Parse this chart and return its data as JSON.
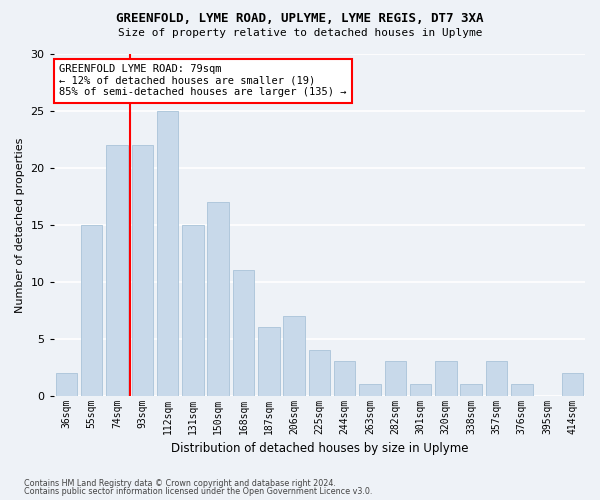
{
  "title1": "GREENFOLD, LYME ROAD, UPLYME, LYME REGIS, DT7 3XA",
  "title2": "Size of property relative to detached houses in Uplyme",
  "xlabel": "Distribution of detached houses by size in Uplyme",
  "ylabel": "Number of detached properties",
  "categories": [
    "36sqm",
    "55sqm",
    "74sqm",
    "93sqm",
    "112sqm",
    "131sqm",
    "150sqm",
    "168sqm",
    "187sqm",
    "206sqm",
    "225sqm",
    "244sqm",
    "263sqm",
    "282sqm",
    "301sqm",
    "320sqm",
    "338sqm",
    "357sqm",
    "376sqm",
    "395sqm",
    "414sqm"
  ],
  "values": [
    2,
    15,
    22,
    22,
    25,
    15,
    17,
    11,
    6,
    7,
    4,
    3,
    1,
    3,
    1,
    3,
    1,
    3,
    1,
    0,
    2
  ],
  "bar_color": "#c8d9ea",
  "bar_edge_color": "#b0c8dc",
  "annotation_text": "GREENFOLD LYME ROAD: 79sqm\n← 12% of detached houses are smaller (19)\n85% of semi-detached houses are larger (135) →",
  "annotation_box_color": "white",
  "annotation_box_edge_color": "red",
  "vline_color": "red",
  "vline_x": 2.5,
  "ylim": [
    0,
    30
  ],
  "yticks": [
    0,
    5,
    10,
    15,
    20,
    25,
    30
  ],
  "footer1": "Contains HM Land Registry data © Crown copyright and database right 2024.",
  "footer2": "Contains public sector information licensed under the Open Government Licence v3.0.",
  "bg_color": "#eef2f7",
  "plot_bg_color": "#eef2f7",
  "grid_color": "#ffffff"
}
